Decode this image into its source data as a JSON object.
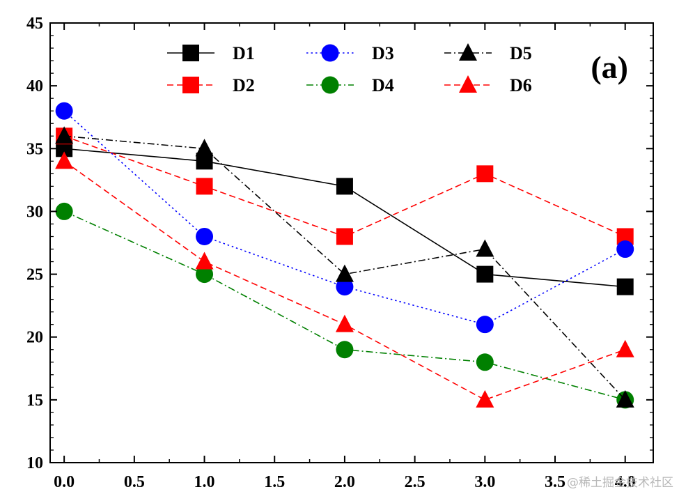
{
  "panel_label": "(a)",
  "watermark": "@稀土掘金技术社区",
  "chart_data": {
    "type": "line",
    "title": "",
    "xlabel": "",
    "ylabel": "",
    "xlim": [
      -0.1,
      4.2
    ],
    "ylim": [
      10,
      45
    ],
    "x_ticks": [
      0.0,
      0.5,
      1.0,
      1.5,
      2.0,
      2.5,
      3.0,
      3.5,
      4.0
    ],
    "x_tick_labels": [
      "0.0",
      "0.5",
      "1.0",
      "1.5",
      "2.0",
      "2.5",
      "3.0",
      "3.5",
      "4.0"
    ],
    "y_ticks": [
      10,
      15,
      20,
      25,
      30,
      35,
      40,
      45
    ],
    "y_tick_labels": [
      "10",
      "15",
      "20",
      "25",
      "30",
      "35",
      "40",
      "45"
    ],
    "grid": false,
    "legend_placement": "top",
    "x": [
      0,
      1,
      2,
      3,
      4
    ],
    "series": [
      {
        "name": "D1",
        "values": [
          35,
          34,
          32,
          25,
          24
        ],
        "color": "#000000",
        "marker": "square",
        "line": "solid"
      },
      {
        "name": "D2",
        "values": [
          36,
          32,
          28,
          33,
          28
        ],
        "color": "#ff0000",
        "marker": "square",
        "line": "dashed"
      },
      {
        "name": "D3",
        "values": [
          38,
          28,
          24,
          21,
          27
        ],
        "color": "#0000ff",
        "marker": "circle",
        "line": "dotted"
      },
      {
        "name": "D4",
        "values": [
          30,
          25,
          19,
          18,
          15
        ],
        "color": "#008000",
        "marker": "circle",
        "line": "dashdot"
      },
      {
        "name": "D5",
        "values": [
          36,
          35,
          25,
          27,
          15
        ],
        "color": "#000000",
        "marker": "triangle",
        "line": "dashdot"
      },
      {
        "name": "D6",
        "values": [
          34,
          26,
          21,
          15,
          19
        ],
        "color": "#ff0000",
        "marker": "triangle",
        "line": "dashed"
      }
    ]
  }
}
